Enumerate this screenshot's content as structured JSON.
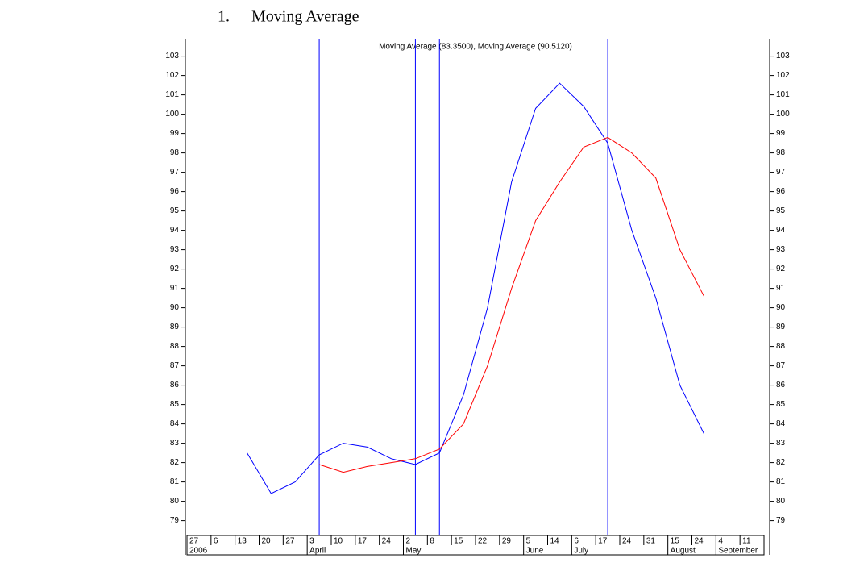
{
  "heading": {
    "number": "1.",
    "text": "Moving Average"
  },
  "chart_data": {
    "type": "line",
    "title": "Moving Average (83.3500), Moving Average (90.5120)",
    "categories": [
      "27",
      "6",
      "13",
      "20",
      "27",
      "3",
      "10",
      "17",
      "24",
      "2",
      "8",
      "15",
      "22",
      "29",
      "5",
      "14",
      "6",
      "17",
      "24",
      "31",
      "15",
      "24",
      "4",
      "11"
    ],
    "month_labels": [
      "2006",
      null,
      null,
      null,
      null,
      "April",
      null,
      null,
      null,
      "May",
      null,
      null,
      null,
      null,
      "June",
      null,
      "July",
      null,
      null,
      null,
      "August",
      null,
      "September",
      null
    ],
    "series": [
      {
        "color": "#0000ff",
        "values": [
          null,
          null,
          82.5,
          80.4,
          81.0,
          82.4,
          83.0,
          82.8,
          82.2,
          81.9,
          82.5,
          85.5,
          90.0,
          96.5,
          100.3,
          101.6,
          100.4,
          98.5,
          94.0,
          90.5,
          86.0,
          83.5,
          null,
          null
        ]
      },
      {
        "color": "#ff0000",
        "values": [
          null,
          null,
          null,
          null,
          null,
          81.9,
          81.5,
          81.8,
          82.0,
          82.2,
          82.7,
          84.0,
          87.0,
          91.0,
          94.5,
          96.5,
          98.3,
          98.8,
          98.0,
          96.7,
          93.0,
          90.6,
          null,
          null
        ]
      }
    ],
    "ylim": [
      78.4,
      103.9
    ],
    "yticks": [
      79,
      80,
      81,
      82,
      83,
      84,
      85,
      86,
      87,
      88,
      89,
      90,
      91,
      92,
      93,
      94,
      95,
      96,
      97,
      98,
      99,
      100,
      101,
      102,
      103
    ],
    "grid": false
  }
}
